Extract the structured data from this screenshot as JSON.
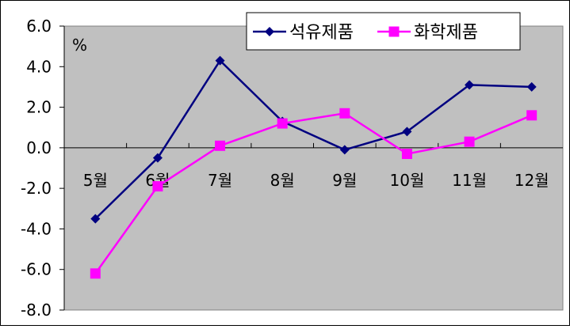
{
  "chart_data": {
    "type": "line",
    "unit_label": "%",
    "categories": [
      "5월",
      "6월",
      "7월",
      "8월",
      "9월",
      "10월",
      "11월",
      "12월"
    ],
    "ylim": [
      -8,
      6
    ],
    "yticks": [
      "6.0",
      "4.0",
      "2.0",
      "0.0",
      "-2.0",
      "-4.0",
      "-6.0",
      "-8.0"
    ],
    "ytick_values": [
      6,
      4,
      2,
      0,
      -2,
      -4,
      -6,
      -8
    ],
    "grid": false,
    "legend_position": "top-right",
    "series": [
      {
        "name": "석유제품",
        "values": [
          -3.5,
          -0.5,
          4.3,
          1.3,
          -0.1,
          0.8,
          3.1,
          3.0
        ],
        "color": "#000080",
        "marker": "diamond"
      },
      {
        "name": "화학제품",
        "values": [
          -6.2,
          -1.9,
          0.1,
          1.2,
          1.7,
          -0.3,
          0.3,
          1.6
        ],
        "color": "#ff00ff",
        "marker": "square"
      }
    ],
    "plot_background": "#c0c0c0"
  }
}
